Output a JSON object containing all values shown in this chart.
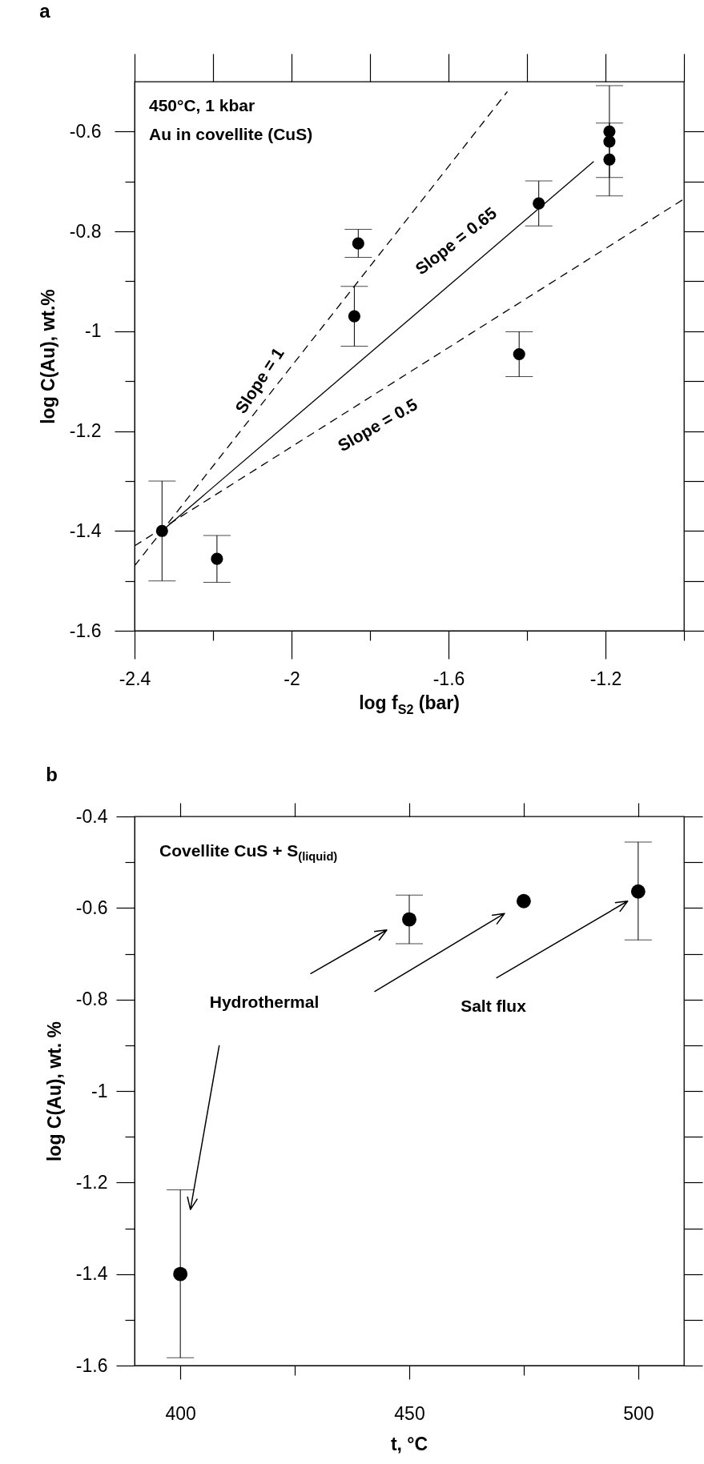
{
  "chart_data": [
    {
      "type": "scatter",
      "title": "a",
      "xlabel": "log f$_{S2}$ (bar)",
      "ylabel": "log C(Au), wt.%",
      "xlim": [
        -2.4,
        -1.0
      ],
      "xticks": [
        -2.4,
        {
          "value": -2.2,
          "label": null
        },
        -2,
        {
          "value": -1.8,
          "label": null
        },
        -1.6,
        {
          "value": -1.4,
          "label": null
        },
        -1.2,
        {
          "value": -1.0,
          "label": null
        }
      ],
      "ylim": [
        -1.6,
        -0.5
      ],
      "yticks": [
        -1.6,
        {
          "value": -1.5,
          "label": null
        },
        -1.4,
        {
          "value": -1.3,
          "label": null
        },
        -1.2,
        {
          "value": -1.1,
          "label": null
        },
        -1,
        {
          "value": -0.9,
          "label": null
        },
        -0.8,
        {
          "value": -0.7,
          "label": null
        },
        -0.6
      ],
      "series": [
        {
          "type": "scatter",
          "color": "#000000",
          "marker": "circle",
          "x": [
            -2.33,
            -2.19,
            -1.84,
            -1.83,
            -1.42,
            -1.37,
            -1.19,
            -1.19,
            -1.19
          ],
          "values": [
            -1.4,
            -1.456,
            -0.97,
            -0.824,
            -1.046,
            -0.744,
            -0.6,
            -0.62,
            -0.656
          ],
          "errors": [
            0.1,
            0.047,
            0.06,
            0.028,
            0.045,
            0.045,
            0.092,
            null,
            0.073
          ]
        },
        {
          "type": "line",
          "color": "#000000",
          "line_style": "solid",
          "x": [
            -2.33,
            -1.23
          ],
          "values": [
            -1.4,
            -0.66
          ]
        },
        {
          "type": "line",
          "color": "#000000",
          "line_style": "dashed",
          "x": [
            -2.4,
            -1.45
          ],
          "values": [
            -1.47,
            -0.52
          ]
        },
        {
          "type": "line",
          "color": "#000000",
          "line_style": "dashed",
          "x": [
            -2.4,
            -1.0
          ],
          "values": [
            -1.43,
            -0.735
          ]
        }
      ],
      "annotations": [
        "450°C, 1 kbar",
        "Au in covellite (CuS)",
        "Slope = 1",
        "Slope = 0.65",
        "Slope = 0.5"
      ]
    },
    {
      "type": "scatter",
      "title": "b",
      "xlabel": "t, °C",
      "ylabel": "log C(Au), wt. %",
      "xlim": [
        390,
        510
      ],
      "xticks": [
        400,
        {
          "value": 425,
          "label": null
        },
        450,
        {
          "value": 475,
          "label": null
        },
        500
      ],
      "ylim": [
        -1.6,
        -0.4
      ],
      "yticks": [
        -1.6,
        {
          "value": -1.5,
          "label": null
        },
        -1.4,
        {
          "value": -1.3,
          "label": null
        },
        -1.2,
        {
          "value": -1.1,
          "label": null
        },
        -1,
        {
          "value": -0.9,
          "label": null
        },
        -0.8,
        {
          "value": -0.7,
          "label": null
        },
        -0.6,
        {
          "value": -0.5,
          "label": null
        },
        -0.4
      ],
      "series": [
        {
          "type": "scatter",
          "color": "#000000",
          "marker": "circle",
          "x": [
            400,
            450,
            475,
            500
          ],
          "values": [
            -1.4,
            -0.625,
            -0.585,
            -0.564
          ],
          "errors": [
            [
              -1.583,
              -1.216
            ],
            0.053,
            null,
            [
              -0.67,
              -0.456
            ]
          ]
        }
      ],
      "annotations": [
        "Covellite CuS + S$_{(liquid)}$",
        "Hydrothermal",
        "Salt flux"
      ]
    }
  ]
}
